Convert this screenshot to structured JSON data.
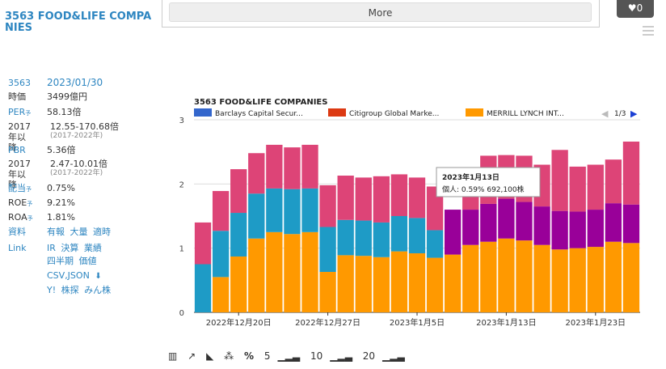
{
  "stock": {
    "title": "3563 FOOD&LIFE COMPANIES",
    "code": "3563",
    "date": "2023/01/30",
    "rows": [
      {
        "label": "時価",
        "value": "3499億円"
      },
      {
        "label": "PER",
        "yo": "予",
        "value": "58.13倍"
      },
      {
        "label": "2017年以降",
        "value": "12.55-170.68倍",
        "sub": "(2017-2022年)"
      },
      {
        "label": "PBR",
        "value": "5.36倍"
      },
      {
        "label": "2017年以降",
        "value": "2.47-10.01倍",
        "sub": "(2017-2022年)"
      },
      {
        "label": "配当",
        "yo": "予",
        "value": "0.75%"
      },
      {
        "label": "ROE",
        "yo": "予",
        "value": "9.21%"
      },
      {
        "label": "ROA",
        "yo": "予",
        "value": "1.81%"
      }
    ],
    "resources_label": "資料",
    "resources": [
      "有報",
      "大量",
      "適時"
    ],
    "link_label": "Link",
    "links_row1": [
      "IR",
      "決算",
      "業績"
    ],
    "links_row2": [
      "四半期",
      "価値"
    ],
    "links_row3": [
      "CSV,JSON"
    ],
    "links_row4": [
      "Y!",
      "株探",
      "みん株"
    ]
  },
  "top": {
    "more_label": "More",
    "fav_count": "0"
  },
  "tooltip": {
    "date": "2023年1月13日",
    "line": "個人: 0.59% 692,100株"
  },
  "legend_page": "1/3",
  "toolbar": {
    "n5": "5",
    "n10": "10",
    "n20": "20"
  },
  "chart_data": {
    "type": "bar",
    "stacked": true,
    "title": "3563 FOOD&LIFE COMPANIES",
    "ylim": [
      0,
      3
    ],
    "yticks": [
      0,
      1,
      2,
      3
    ],
    "x_tick_labels": [
      "2022年12月20日",
      "2022年12月27日",
      "2023年1月5日",
      "2023年1月13日",
      "2023年1月23日"
    ],
    "x_tick_index": [
      2,
      7,
      12,
      17,
      22
    ],
    "colors": {
      "merrill": "#ff9900",
      "blue": "#1e9bc6",
      "magenta": "#dd4477",
      "purple": "#990099"
    },
    "series": [
      {
        "name": "MERRILL LYNCH INT...",
        "color": "#ff9900",
        "values": [
          0,
          0.55,
          0.87,
          1.15,
          1.25,
          1.22,
          1.25,
          0.63,
          0.89,
          0.88,
          0.86,
          0.95,
          0.92,
          0.85,
          0.9,
          1.05,
          1.1,
          1.15,
          1.12,
          1.05,
          0.98,
          1.0,
          1.02,
          1.1,
          1.08
        ]
      },
      {
        "name": "",
        "color": "#1e9bc6",
        "values": [
          0.75,
          0.72,
          0.68,
          0.7,
          0.68,
          0.7,
          0.68,
          0.7,
          0.55,
          0.55,
          0.54,
          0.55,
          0.55,
          0.43,
          0,
          0,
          0,
          0,
          0,
          0,
          0,
          0,
          0,
          0,
          0
        ]
      },
      {
        "name": "",
        "color": "#990099",
        "values": [
          0,
          0,
          0,
          0,
          0,
          0,
          0,
          0,
          0,
          0,
          0,
          0,
          0,
          0,
          0.7,
          0.55,
          0.59,
          0.62,
          0.6,
          0.6,
          0.6,
          0.57,
          0.58,
          0.6,
          0.6
        ]
      },
      {
        "name": "",
        "color": "#dd4477",
        "values": [
          0.65,
          0.62,
          0.68,
          0.63,
          0.68,
          0.65,
          0.68,
          0.65,
          0.69,
          0.67,
          0.72,
          0.65,
          0.63,
          0.68,
          0,
          0.2,
          0.75,
          0.68,
          0.72,
          0.65,
          0.95,
          0.7,
          0.7,
          0.68,
          0.98
        ]
      }
    ],
    "legend": [
      {
        "name": "Barclays Capital Secur...",
        "color": "#3366cc"
      },
      {
        "name": "Citigroup Global Marke...",
        "color": "#dc3912"
      },
      {
        "name": "MERRILL LYNCH INT...",
        "color": "#ff9900"
      }
    ]
  }
}
